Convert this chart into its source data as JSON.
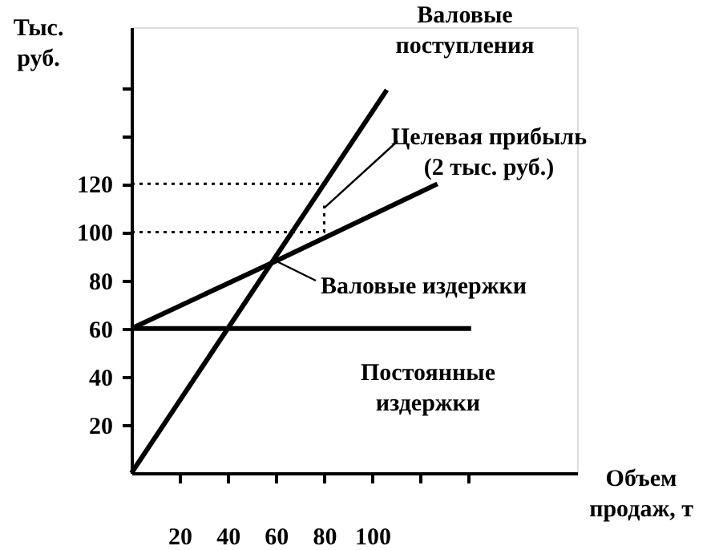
{
  "chart_data": {
    "type": "line",
    "xlabel": "Объем\nпродаж, т",
    "ylabel": "Тыс.\nруб.",
    "xlim": [
      0,
      185
    ],
    "ylim": [
      0,
      185
    ],
    "xticks": [
      20,
      40,
      60,
      80,
      100,
      {
        "value": 120,
        "label": null
      },
      {
        "value": 140,
        "label": null
      }
    ],
    "yticks": [
      20,
      40,
      60,
      80,
      100,
      120,
      {
        "value": 140,
        "label": null
      },
      {
        "value": 160,
        "label": null
      }
    ],
    "grid": false,
    "series": [
      {
        "name": "Валовые\nпоступления",
        "color": "#000000",
        "line_style": "solid",
        "x": [
          0,
          106
        ],
        "values": [
          0,
          159
        ]
      },
      {
        "name": "Валовые издержки",
        "color": "#000000",
        "line_style": "solid",
        "x": [
          0,
          60,
          127
        ],
        "values": [
          60,
          88,
          120
        ]
      },
      {
        "name": "Постоянные\nиздержки",
        "color": "#000000",
        "line_style": "solid",
        "x": [
          0,
          141
        ],
        "values": [
          60,
          60
        ]
      },
      {
        "color": "#000000",
        "line_style": "dotted",
        "x": [
          0,
          81
        ],
        "values": [
          120,
          120
        ]
      },
      {
        "color": "#000000",
        "line_style": "dotted",
        "x": [
          0,
          80,
          80
        ],
        "values": [
          100,
          100,
          111
        ]
      }
    ],
    "annotations": [
      {
        "text": "Целевая прибыль\n(2 тыс. руб.)",
        "x": 80,
        "y": 110
      }
    ]
  }
}
